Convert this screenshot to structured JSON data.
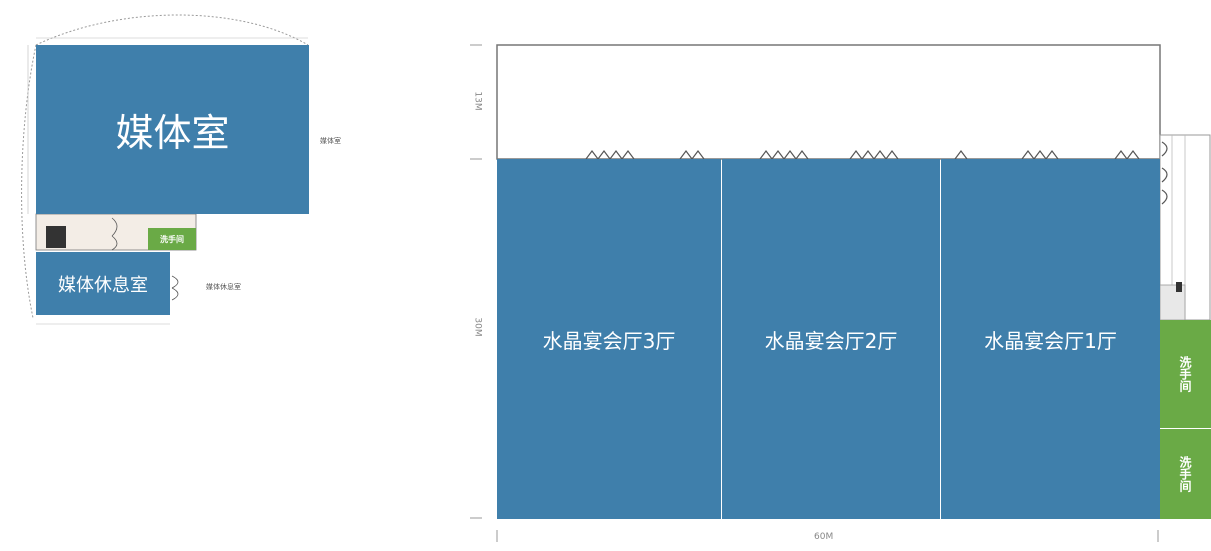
{
  "colors": {
    "room": "#3f7fab",
    "wc": "#6aaa46",
    "wall": "#666666",
    "hall_top": "#ffffff"
  },
  "left_plan": {
    "media_room": "媒体室",
    "media_room_side_label": "媒体室",
    "restroom": "洗手间",
    "lounge": "媒体休息室",
    "lounge_side_label": "媒体休息室"
  },
  "right_plan": {
    "halls": [
      {
        "label": "水晶宴会厅3厅"
      },
      {
        "label": "水晶宴会厅2厅"
      },
      {
        "label": "水晶宴会厅1厅"
      }
    ],
    "restrooms": [
      "洗手间",
      "洗手间"
    ],
    "dim_top": "13M",
    "dim_side": "30M",
    "dim_bottom": "60M"
  }
}
